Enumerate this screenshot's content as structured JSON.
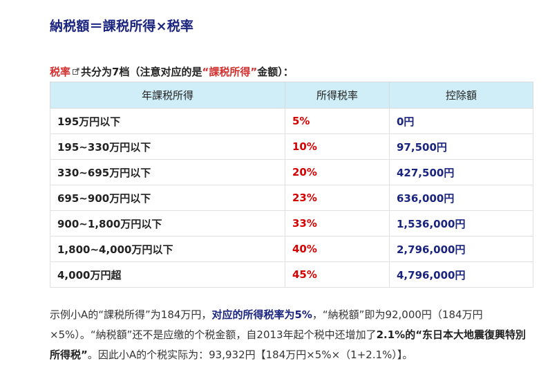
{
  "heading": "納税額＝課税所得×税率",
  "intro": {
    "link_text": "税率",
    "text1": "共分为7档（注意对应的是",
    "quote": "“課税所得”",
    "text2": "金额）："
  },
  "table": {
    "headers": [
      "年課税所得",
      "所得税率",
      "控除額"
    ],
    "rows": [
      {
        "income": "195万円以下",
        "rate": "5%",
        "deduction": "0円"
      },
      {
        "income": "195~330万円以下",
        "rate": "10%",
        "deduction": "97,500円"
      },
      {
        "income": "330~695万円以下",
        "rate": "20%",
        "deduction": "427,500円"
      },
      {
        "income": "695~900万円以下",
        "rate": "23%",
        "deduction": "636,000円"
      },
      {
        "income": "900~1,800万円以下",
        "rate": "33%",
        "deduction": "1,536,000円"
      },
      {
        "income": "1,800~4,000万円以下",
        "rate": "40%",
        "deduction": "2,796,000円"
      },
      {
        "income": "4,000万円超",
        "rate": "45%",
        "deduction": "4,796,000円"
      }
    ]
  },
  "paragraph": {
    "p1": "示例小A的“課税所得”为184万円，",
    "p2_bold": "对应的所得税率为5%",
    "p3": "，“納税額”即为92,000円（184万円×5%）。“納税額”还不是应缴的个税金额，自2013年起个税中还增加了",
    "p4_bold": "2.1%的“东日本大地震復興特別所得税”",
    "p5": "。因此小A的个税实际为：93,932円【184万円×5%×（1+2.1%）】。"
  },
  "colors": {
    "heading": "#1a237e",
    "accent_red": "#d50000",
    "link_red": "#d32f2f",
    "deduction_blue": "#1a237e",
    "header_bg": "#cfeef7"
  }
}
